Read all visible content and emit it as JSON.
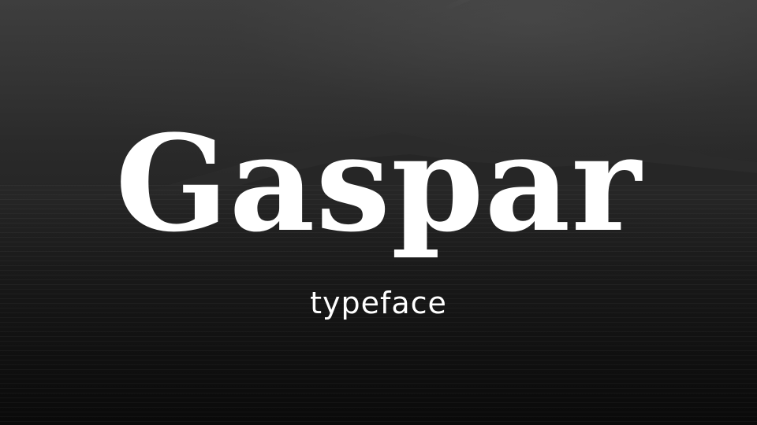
{
  "hero": {
    "title": "Gaspar",
    "subtitle": "typeface"
  },
  "colors": {
    "text": "#ffffff",
    "sky": "#3e3e3e",
    "sea": "#0b0b0b"
  },
  "background": {
    "image": "dark-seascape-with-mountains"
  }
}
